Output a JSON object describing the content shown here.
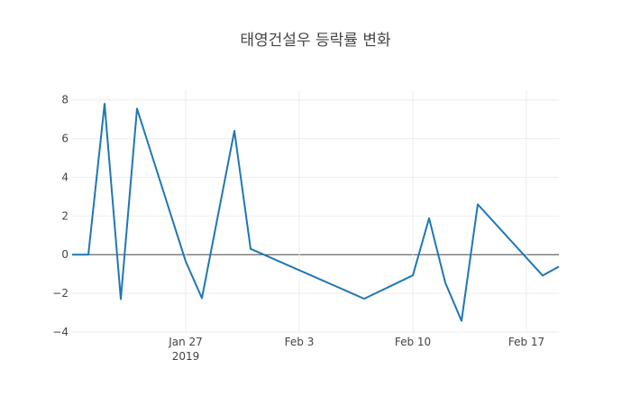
{
  "chart_data": {
    "type": "line",
    "title": "태영건설우 등락률 변화",
    "xlabel": "",
    "ylabel": "",
    "x_axis": {
      "type": "date",
      "range": [
        "2019-01-20",
        "2019-02-19"
      ],
      "ticks": [
        {
          "date": "2019-01-27",
          "label": "Jan 27",
          "sublabel": "2019"
        },
        {
          "date": "2019-02-03",
          "label": "Feb 3",
          "sublabel": ""
        },
        {
          "date": "2019-02-10",
          "label": "Feb 10",
          "sublabel": ""
        },
        {
          "date": "2019-02-17",
          "label": "Feb 17",
          "sublabel": ""
        }
      ]
    },
    "y_axis": {
      "range": [
        -4,
        8.5
      ],
      "ticks": [
        {
          "value": -4,
          "label": "−4"
        },
        {
          "value": -2,
          "label": "−2"
        },
        {
          "value": 0,
          "label": "0"
        },
        {
          "value": 2,
          "label": "2"
        },
        {
          "value": 4,
          "label": "4"
        },
        {
          "value": 6,
          "label": "6"
        },
        {
          "value": 8,
          "label": "8"
        }
      ]
    },
    "grid": true,
    "legend": "none",
    "series": [
      {
        "color": "#1f77b4",
        "points": [
          {
            "x": "2019-01-20",
            "y": 0
          },
          {
            "x": "2019-01-21",
            "y": 0
          },
          {
            "x": "2019-01-22",
            "y": 7.8
          },
          {
            "x": "2019-01-23",
            "y": -2.3
          },
          {
            "x": "2019-01-24",
            "y": 7.55
          },
          {
            "x": "2019-01-27",
            "y": -0.35
          },
          {
            "x": "2019-01-28",
            "y": -2.25
          },
          {
            "x": "2019-01-30",
            "y": 6.4
          },
          {
            "x": "2019-01-31",
            "y": 0.3
          },
          {
            "x": "2019-02-07",
            "y": -2.28
          },
          {
            "x": "2019-02-10",
            "y": -1.07
          },
          {
            "x": "2019-02-11",
            "y": 1.88
          },
          {
            "x": "2019-02-12",
            "y": -1.45
          },
          {
            "x": "2019-02-13",
            "y": -3.42
          },
          {
            "x": "2019-02-14",
            "y": 2.6
          },
          {
            "x": "2019-02-18",
            "y": -1.08
          },
          {
            "x": "2019-02-19",
            "y": -0.62
          }
        ]
      }
    ]
  }
}
